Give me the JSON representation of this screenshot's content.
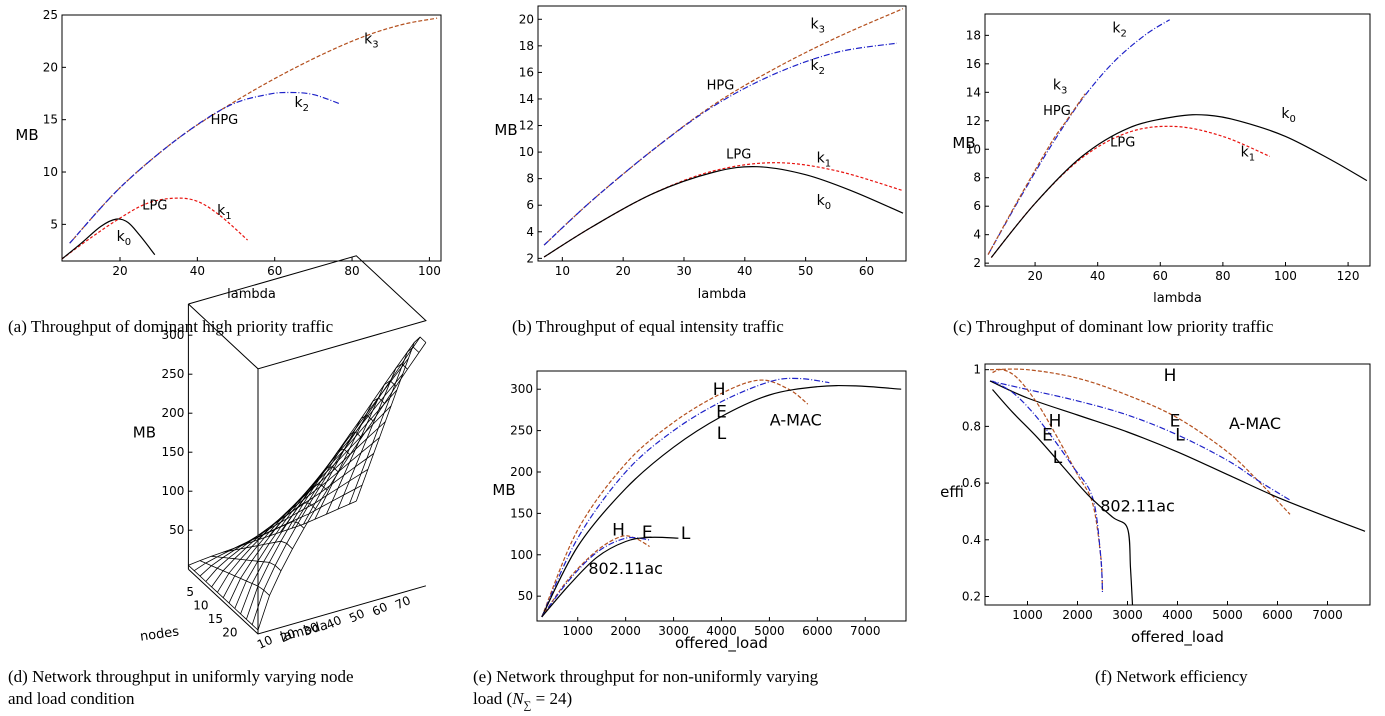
{
  "captions": {
    "a": "(a) Throughput of dominant high priority traffic",
    "b": "(b) Throughput of equal intensity traffic",
    "c": "(c) Throughput of dominant low priority traffic",
    "d1": "(d) Network throughput in uniformly varying node",
    "d2": "and load condition",
    "e1": "(e) Network throughput for non-uniformly varying",
    "e2_pre": "load (",
    "e2_math": "N",
    "e2_sub": "∑",
    "e2_post": " = 24)",
    "f": "(f) Network efficiency"
  },
  "colors": {
    "k0": "#000000",
    "k1": "#e8130f",
    "k2": "#1e22c8",
    "k3": "#b4501e"
  },
  "chart_data": [
    {
      "id": "a",
      "type": "line",
      "xlabel": "lambda",
      "ylabel": "MB",
      "xlim": [
        5,
        103
      ],
      "ylim": [
        1.5,
        25
      ],
      "xticks": [
        20,
        40,
        60,
        80,
        100
      ],
      "yticks": [
        5,
        10,
        15,
        20,
        25
      ],
      "series": [
        {
          "name": "k3",
          "color": "k3",
          "dash": "4,2",
          "x": [
            7,
            20,
            35,
            50,
            65,
            80,
            92,
            102
          ],
          "y": [
            3.2,
            8.5,
            13.2,
            16.8,
            19.9,
            22.5,
            24,
            24.7
          ]
        },
        {
          "name": "k2",
          "color": "k2",
          "dash": "6,2,1,2",
          "x": [
            7,
            20,
            35,
            48,
            58,
            64,
            70,
            77
          ],
          "y": [
            3.2,
            8.5,
            13.2,
            16.3,
            17.4,
            17.6,
            17.4,
            16.5
          ]
        },
        {
          "name": "k1",
          "color": "k1",
          "dash": "3,2",
          "x": [
            5,
            12,
            20,
            27,
            34,
            40,
            46,
            53
          ],
          "y": [
            1.7,
            3.6,
            5.6,
            7.0,
            7.5,
            7.2,
            5.8,
            3.5
          ]
        },
        {
          "name": "k0",
          "color": "k0",
          "dash": "",
          "x": [
            5,
            10,
            15,
            19,
            22,
            25,
            29
          ],
          "y": [
            1.7,
            3.2,
            4.8,
            5.5,
            5.2,
            4.0,
            2.1
          ]
        }
      ],
      "labels": [
        {
          "text": "k",
          "sub": "3",
          "x": 85,
          "y": 22.3
        },
        {
          "text": "k",
          "sub": "2",
          "x": 67,
          "y": 16.2
        },
        {
          "text": "HPG",
          "sub": "",
          "x": 47,
          "y": 14.6
        },
        {
          "text": "LPG",
          "sub": "",
          "x": 29,
          "y": 6.4
        },
        {
          "text": "k",
          "sub": "1",
          "x": 47,
          "y": 5.9
        },
        {
          "text": "k",
          "sub": "0",
          "x": 21,
          "y": 3.4
        }
      ]
    },
    {
      "id": "b",
      "type": "line",
      "xlabel": "lambda",
      "ylabel": "MB",
      "xlim": [
        6,
        66.5
      ],
      "ylim": [
        1.8,
        21
      ],
      "xticks": [
        10,
        20,
        30,
        40,
        50,
        60
      ],
      "yticks": [
        2,
        4,
        6,
        8,
        10,
        12,
        14,
        16,
        18,
        20
      ],
      "series": [
        {
          "name": "k3",
          "color": "k3",
          "dash": "4,2",
          "x": [
            7,
            15,
            25,
            35,
            45,
            55,
            66
          ],
          "y": [
            3.0,
            6.4,
            10.2,
            13.6,
            16.3,
            18.6,
            20.8
          ]
        },
        {
          "name": "k2",
          "color": "k2",
          "dash": "6,2,1,2",
          "x": [
            7,
            15,
            25,
            35,
            45,
            55,
            65
          ],
          "y": [
            3.0,
            6.4,
            10.2,
            13.5,
            15.9,
            17.5,
            18.2
          ]
        },
        {
          "name": "k1",
          "color": "k1",
          "dash": "3,2",
          "x": [
            7,
            15,
            25,
            35,
            45,
            55,
            66
          ],
          "y": [
            2.1,
            4.4,
            6.9,
            8.6,
            9.2,
            8.6,
            7.1
          ]
        },
        {
          "name": "k0",
          "color": "k0",
          "dash": "",
          "x": [
            7,
            15,
            25,
            35,
            42,
            50,
            58,
            66
          ],
          "y": [
            2.1,
            4.4,
            6.9,
            8.5,
            8.9,
            8.3,
            7.0,
            5.4
          ]
        }
      ],
      "labels": [
        {
          "text": "k",
          "sub": "3",
          "x": 52,
          "y": 19.3
        },
        {
          "text": "k",
          "sub": "2",
          "x": 52,
          "y": 16.2
        },
        {
          "text": "HPG",
          "sub": "",
          "x": 36,
          "y": 14.7
        },
        {
          "text": "LPG",
          "sub": "",
          "x": 39,
          "y": 9.5
        },
        {
          "text": "k",
          "sub": "1",
          "x": 53,
          "y": 9.2
        },
        {
          "text": "k",
          "sub": "0",
          "x": 53,
          "y": 6.0
        }
      ]
    },
    {
      "id": "c",
      "type": "line",
      "xlabel": "lambda",
      "ylabel": "MB",
      "xlim": [
        4,
        127
      ],
      "ylim": [
        1.8,
        19.5
      ],
      "xticks": [
        20,
        40,
        60,
        80,
        100,
        120
      ],
      "yticks": [
        2,
        4,
        6,
        8,
        10,
        12,
        14,
        16,
        18
      ],
      "series": [
        {
          "name": "k2",
          "color": "k2",
          "dash": "6,2,1,2",
          "x": [
            5,
            15,
            25,
            35,
            45,
            55,
            63
          ],
          "y": [
            2.6,
            6.5,
            10.2,
            13.5,
            16.1,
            18.0,
            19.1
          ]
        },
        {
          "name": "k3",
          "color": "k3",
          "dash": "4,2",
          "x": [
            5,
            15,
            25,
            30,
            36
          ],
          "y": [
            2.6,
            6.6,
            10.4,
            12.0,
            13.9
          ]
        },
        {
          "name": "k1",
          "color": "k1",
          "dash": "3,2",
          "x": [
            6,
            20,
            35,
            50,
            65,
            80,
            95
          ],
          "y": [
            2.4,
            6.2,
            9.4,
            11.2,
            11.6,
            10.9,
            9.5
          ]
        },
        {
          "name": "k0",
          "color": "k0",
          "dash": "",
          "x": [
            6,
            20,
            35,
            50,
            65,
            75,
            85,
            100,
            115,
            126
          ],
          "y": [
            2.4,
            6.2,
            9.5,
            11.5,
            12.3,
            12.4,
            12.0,
            10.9,
            9.2,
            7.8
          ]
        }
      ],
      "labels": [
        {
          "text": "k",
          "sub": "2",
          "x": 47,
          "y": 18.2
        },
        {
          "text": "k",
          "sub": "3",
          "x": 28,
          "y": 14.2
        },
        {
          "text": "HPG",
          "sub": "",
          "x": 27,
          "y": 12.4
        },
        {
          "text": "LPG",
          "sub": "",
          "x": 48,
          "y": 10.2
        },
        {
          "text": "k",
          "sub": "0",
          "x": 101,
          "y": 12.2
        },
        {
          "text": "k",
          "sub": "1",
          "x": 88,
          "y": 9.5
        }
      ]
    },
    {
      "id": "d",
      "type": "surface",
      "xlabel": "nodes",
      "ylabel": "lambda",
      "zlabel": "MB",
      "nodes_ticks": [
        5,
        10,
        15,
        20
      ],
      "lambda_ticks": [
        10,
        20,
        30,
        40,
        50,
        60,
        70
      ],
      "z_ticks": [
        50,
        100,
        150,
        200,
        250,
        300
      ],
      "nodes_range": [
        1,
        25
      ],
      "lambda_range": [
        5,
        78
      ]
    },
    {
      "id": "e",
      "type": "line",
      "xlabel": "offered_load",
      "ylabel": "MB",
      "xlim": [
        150,
        7850
      ],
      "ylim": [
        20,
        322
      ],
      "xticks": [
        1000,
        2000,
        3000,
        4000,
        5000,
        6000,
        7000
      ],
      "yticks": [
        50,
        100,
        150,
        200,
        250,
        300
      ],
      "series": [
        {
          "name": "A-MAC H",
          "color": "k3",
          "dash": "4,2",
          "x": [
            250,
            1000,
            2000,
            3000,
            4000,
            4800,
            5400,
            5800
          ],
          "y": [
            25,
            130,
            210,
            260,
            295,
            311,
            300,
            282
          ]
        },
        {
          "name": "A-MAC E",
          "color": "k2",
          "dash": "6,2,1,2",
          "x": [
            250,
            1000,
            2000,
            3000,
            4000,
            5000,
            5600,
            6250
          ],
          "y": [
            25,
            120,
            200,
            250,
            285,
            309,
            313,
            308
          ]
        },
        {
          "name": "A-MAC L",
          "color": "k0",
          "dash": "",
          "x": [
            250,
            1000,
            2000,
            3000,
            4000,
            5000,
            6000,
            6800,
            7750
          ],
          "y": [
            25,
            110,
            180,
            230,
            267,
            293,
            303,
            304,
            300
          ]
        },
        {
          "name": "802.11ac H",
          "color": "k3",
          "dash": "4,2",
          "x": [
            250,
            800,
            1400,
            1900,
            2200,
            2500
          ],
          "y": [
            25,
            70,
            105,
            122,
            120,
            110
          ]
        },
        {
          "name": "802.11ac E",
          "color": "k2",
          "dash": "6,2,1,2",
          "x": [
            250,
            800,
            1400,
            2000,
            2500
          ],
          "y": [
            25,
            68,
            103,
            120,
            118
          ]
        },
        {
          "name": "802.11ac L",
          "color": "k0",
          "dash": "",
          "x": [
            250,
            800,
            1400,
            2000,
            2500,
            3100
          ],
          "y": [
            25,
            62,
            97,
            116,
            121,
            120
          ]
        }
      ],
      "labels": [
        {
          "text": "H",
          "sub": "",
          "x": 3950,
          "y": 293
        },
        {
          "text": "E",
          "sub": "",
          "x": 4000,
          "y": 266
        },
        {
          "text": "L",
          "sub": "",
          "x": 4000,
          "y": 240
        },
        {
          "text": "A-MAC",
          "sub": "",
          "x": 5550,
          "y": 256
        },
        {
          "text": "H",
          "sub": "",
          "x": 1850,
          "y": 123
        },
        {
          "text": "E",
          "sub": "",
          "x": 2450,
          "y": 120
        },
        {
          "text": "L",
          "sub": "",
          "x": 3250,
          "y": 119
        },
        {
          "text": "802.11ac",
          "sub": "",
          "x": 2000,
          "y": 77
        }
      ]
    },
    {
      "id": "f",
      "type": "line",
      "xlabel": "offered_load",
      "ylabel": "effi",
      "xlim": [
        150,
        7850
      ],
      "ylim": [
        0.17,
        1.02
      ],
      "xticks": [
        1000,
        2000,
        3000,
        4000,
        5000,
        6000,
        7000
      ],
      "yticks": [
        0.2,
        0.4,
        0.6,
        0.8,
        1
      ],
      "series": [
        {
          "name": "A-MAC H",
          "color": "k3",
          "dash": "4,2",
          "x": [
            250,
            1000,
            2000,
            3000,
            4000,
            5000,
            5600,
            6250
          ],
          "y": [
            1.0,
            1.0,
            0.97,
            0.91,
            0.83,
            0.71,
            0.61,
            0.49
          ]
        },
        {
          "name": "A-MAC E",
          "color": "k2",
          "dash": "6,2,1,2",
          "x": [
            250,
            1000,
            2000,
            3000,
            4000,
            5000,
            5600,
            6250
          ],
          "y": [
            0.96,
            0.93,
            0.89,
            0.84,
            0.77,
            0.68,
            0.61,
            0.54
          ]
        },
        {
          "name": "A-MAC L",
          "color": "k0",
          "dash": "",
          "x": [
            250,
            1000,
            2000,
            3000,
            4000,
            5000,
            6000,
            7000,
            7750
          ],
          "y": [
            0.96,
            0.9,
            0.84,
            0.78,
            0.71,
            0.63,
            0.55,
            0.48,
            0.43
          ]
        },
        {
          "name": "802.11ac H",
          "color": "k3",
          "dash": "4,2",
          "x": [
            300,
            500,
            800,
            1200,
            1600,
            2000,
            2300,
            2460,
            2500
          ],
          "y": [
            0.99,
            1.0,
            0.97,
            0.88,
            0.76,
            0.63,
            0.53,
            0.35,
            0.22
          ]
        },
        {
          "name": "802.11ac E",
          "color": "k2",
          "dash": "6,2,1,2",
          "x": [
            300,
            700,
            1100,
            1500,
            1900,
            2300,
            2460,
            2500
          ],
          "y": [
            0.96,
            0.92,
            0.85,
            0.76,
            0.66,
            0.55,
            0.35,
            0.21
          ]
        },
        {
          "name": "802.11ac L",
          "color": "k0",
          "dash": "",
          "x": [
            300,
            700,
            1200,
            1700,
            2200,
            2700,
            3000,
            3060,
            3100
          ],
          "y": [
            0.93,
            0.85,
            0.76,
            0.66,
            0.56,
            0.48,
            0.44,
            0.3,
            0.17
          ]
        }
      ],
      "labels": [
        {
          "text": "H",
          "sub": "",
          "x": 3850,
          "y": 0.96
        },
        {
          "text": "E",
          "sub": "",
          "x": 3950,
          "y": 0.8
        },
        {
          "text": "L",
          "sub": "",
          "x": 4050,
          "y": 0.75
        },
        {
          "text": "A-MAC",
          "sub": "",
          "x": 5550,
          "y": 0.79
        },
        {
          "text": "H",
          "sub": "",
          "x": 1550,
          "y": 0.8
        },
        {
          "text": "E",
          "sub": "",
          "x": 1400,
          "y": 0.75
        },
        {
          "text": "L",
          "sub": "",
          "x": 1600,
          "y": 0.67
        },
        {
          "text": "802.11ac",
          "sub": "",
          "x": 3200,
          "y": 0.5
        }
      ]
    }
  ]
}
